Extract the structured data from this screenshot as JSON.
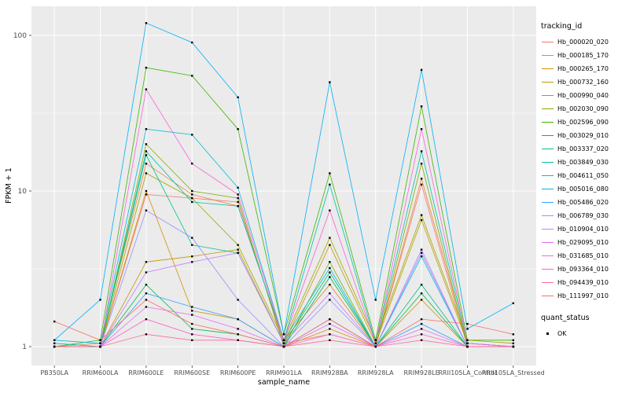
{
  "chart_data": {
    "type": "line",
    "title": "",
    "xlabel": "sample_name",
    "ylabel": "FPKM + 1",
    "y_scale": "log10",
    "y_ticks": [
      "1",
      "10",
      "100"
    ],
    "y_tick_values": [
      1,
      10,
      100
    ],
    "y_minor_tick_values": [
      3.1623,
      31.6228
    ],
    "ylim": [
      0.95,
      150
    ],
    "grid": true,
    "legend_position": "right",
    "panel_bg": "#EBEBEB",
    "grid_color": "#FFFFFF",
    "point_color": "#000000",
    "tick_label_color": "#4D4D4D",
    "categories": [
      "PB350LA",
      "RRIM600LA",
      "RRIM600LE",
      "RRIM600SE",
      "RRIM600PE",
      "RRIM901LA",
      "RRIM928BA",
      "RRIM928LA",
      "RRIM928LE",
      "RRII105LA_Control",
      "RRII105LA_Stressed"
    ],
    "series": [
      {
        "name": "Hb_000020_020",
        "color": "#F8766D",
        "values": [
          1.0,
          1.0,
          9.5,
          9.0,
          8.5,
          1.05,
          1.2,
          1.0,
          11,
          1.0,
          1.0
        ]
      },
      {
        "name": "Hb_000185_170",
        "color": "#EA8331",
        "values": [
          1.0,
          1.05,
          15,
          9.5,
          8.0,
          1.1,
          2.5,
          1.0,
          12,
          1.05,
          1.0
        ]
      },
      {
        "name": "Hb_000265_170",
        "color": "#D89000",
        "values": [
          1.0,
          1.0,
          10,
          1.7,
          1.5,
          1.0,
          1.3,
          1.0,
          2.0,
          1.0,
          1.0
        ]
      },
      {
        "name": "Hb_000732_160",
        "color": "#C09B00",
        "values": [
          1.0,
          1.0,
          3.5,
          3.8,
          4.2,
          1.05,
          4.5,
          1.05,
          6.5,
          1.05,
          1.0
        ]
      },
      {
        "name": "Hb_000990_040",
        "color": "#A3A500",
        "values": [
          1.0,
          1.0,
          13,
          9.0,
          4.5,
          1.1,
          5.0,
          1.1,
          7.0,
          1.1,
          1.05
        ]
      },
      {
        "name": "Hb_002030_090",
        "color": "#7CAE00",
        "values": [
          1.0,
          1.0,
          20,
          10,
          9.0,
          1.0,
          3.5,
          1.0,
          15,
          1.0,
          1.0
        ]
      },
      {
        "name": "Hb_002596_090",
        "color": "#39B600",
        "values": [
          1.0,
          1.1,
          62,
          55,
          25,
          1.2,
          13,
          1.1,
          35,
          1.1,
          1.1
        ]
      },
      {
        "name": "Hb_003029_010",
        "color": "#00BB4E",
        "values": [
          1.0,
          1.0,
          2.5,
          1.3,
          1.2,
          1.0,
          2.8,
          1.0,
          2.2,
          1.0,
          1.0
        ]
      },
      {
        "name": "Hb_003337_020",
        "color": "#00C087",
        "values": [
          1.05,
          1.0,
          17,
          4.5,
          4.0,
          1.05,
          3.0,
          1.0,
          2.5,
          1.0,
          1.0
        ]
      },
      {
        "name": "Hb_003849_030",
        "color": "#00C0AF",
        "values": [
          1.0,
          1.0,
          18,
          8.5,
          8.0,
          1.1,
          11,
          1.05,
          18,
          1.05,
          1.0
        ]
      },
      {
        "name": "Hb_004611_050",
        "color": "#00BCD8",
        "values": [
          1.1,
          1.05,
          25,
          23,
          10.5,
          1.1,
          3.2,
          1.0,
          3.8,
          1.0,
          1.0
        ]
      },
      {
        "name": "Hb_005016_080",
        "color": "#00B0F6",
        "values": [
          1.1,
          2.0,
          120,
          90,
          40,
          1.2,
          50,
          2.0,
          60,
          1.3,
          1.9
        ]
      },
      {
        "name": "Hb_005486_020",
        "color": "#35A2FF",
        "values": [
          1.0,
          1.0,
          2.2,
          1.8,
          1.5,
          1.0,
          1.5,
          1.0,
          1.4,
          1.0,
          1.0
        ]
      },
      {
        "name": "Hb_006789_030",
        "color": "#9590FF",
        "values": [
          1.0,
          1.0,
          7.5,
          5.0,
          2.0,
          1.0,
          2.0,
          1.0,
          4.0,
          1.0,
          1.0
        ]
      },
      {
        "name": "Hb_010904_010",
        "color": "#C77CFF",
        "values": [
          1.0,
          1.0,
          3.0,
          3.5,
          4.0,
          1.05,
          2.2,
          1.0,
          4.2,
          1.0,
          1.0
        ]
      },
      {
        "name": "Hb_029095_010",
        "color": "#E76BF3",
        "values": [
          1.0,
          1.0,
          1.8,
          1.6,
          1.3,
          1.0,
          1.4,
          1.0,
          1.3,
          1.0,
          1.0
        ]
      },
      {
        "name": "Hb_031685_010",
        "color": "#FA62DB",
        "values": [
          1.0,
          1.0,
          45,
          15,
          9.5,
          1.1,
          7.5,
          1.05,
          25,
          1.05,
          1.0
        ]
      },
      {
        "name": "Hb_093364_010",
        "color": "#FF61C9",
        "values": [
          1.0,
          1.0,
          1.5,
          1.2,
          1.1,
          1.0,
          1.2,
          1.0,
          1.2,
          1.0,
          1.0
        ]
      },
      {
        "name": "Hb_094439_010",
        "color": "#FF6A98",
        "values": [
          1.0,
          1.0,
          1.2,
          1.1,
          1.1,
          1.0,
          1.1,
          1.0,
          1.1,
          1.0,
          1.0
        ]
      },
      {
        "name": "Hb_111997_010",
        "color": "#FC6C67",
        "values": [
          1.45,
          1.1,
          2.0,
          1.4,
          1.2,
          1.0,
          1.5,
          1.0,
          1.5,
          1.4,
          1.2
        ]
      }
    ],
    "legend": {
      "color_title": "tracking_id",
      "shape_title": "quant_status",
      "shape_items": [
        {
          "label": "OK"
        }
      ]
    }
  }
}
